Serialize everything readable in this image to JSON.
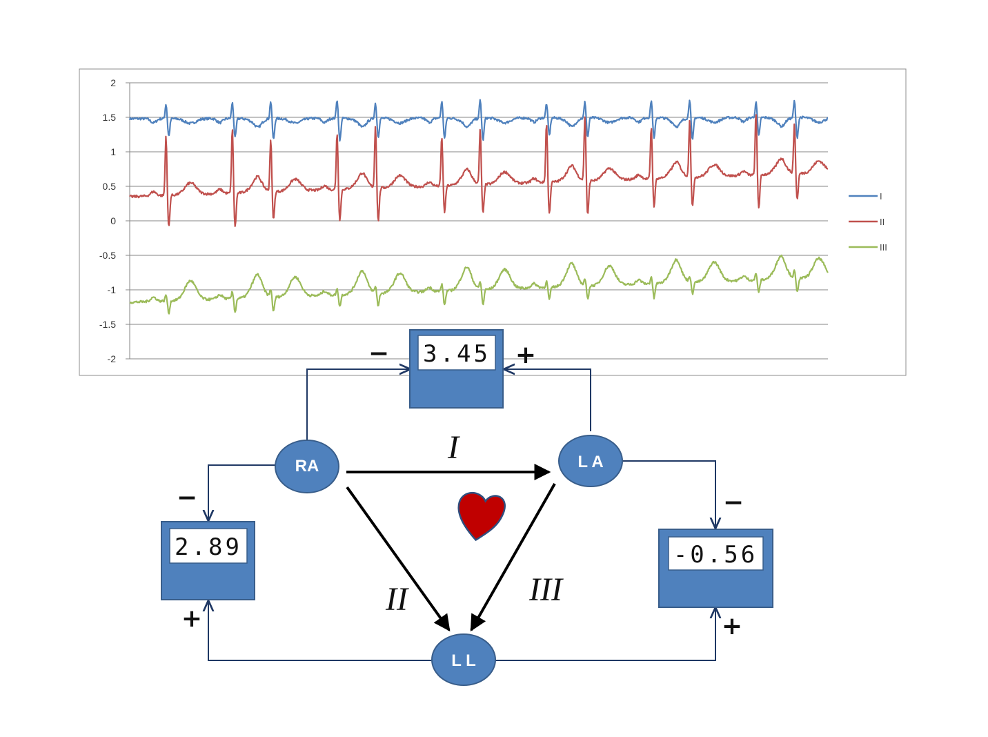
{
  "chart_data": {
    "type": "line",
    "ylim": [
      -2,
      2
    ],
    "y_ticks": [
      "2",
      "1.5",
      "1",
      "0.5",
      "0",
      "-0.5",
      "-1",
      "-1.5",
      "-2"
    ],
    "grid": true,
    "legend_position": "right",
    "series": [
      {
        "name": "I",
        "color": "#4F81BD",
        "baseline_start": 1.48,
        "baseline_end": 1.5,
        "r_peak": 0.25,
        "s_depth": 0.3,
        "t_wave": -0.07
      },
      {
        "name": "II",
        "color": "#C0504D",
        "baseline_start": 0.35,
        "baseline_end": 0.7,
        "r_peak": 0.85,
        "s_depth": 0.45,
        "t_wave": 0.17
      },
      {
        "name": "III",
        "color": "#9BBB59",
        "baseline_start": -1.18,
        "baseline_end": -0.82,
        "r_peak": 0.1,
        "s_depth": 0.2,
        "t_wave": 0.28
      }
    ],
    "beats": 13
  },
  "meters": {
    "lead_I": {
      "value": "3.45",
      "minus": "−",
      "plus": "+"
    },
    "lead_II": {
      "value": "2.89",
      "minus": "−",
      "plus": "+"
    },
    "lead_III": {
      "value": "-0.56",
      "minus": "−",
      "plus": "+"
    }
  },
  "electrodes": {
    "ra": "RA",
    "la": "L A",
    "ll": "L L"
  },
  "leads": {
    "i": "I",
    "ii": "II",
    "iii": "III"
  },
  "colors": {
    "box_fill": "#4F81BD",
    "box_stroke": "#385D8A",
    "wire": "#1F3864",
    "heart": "#C00000"
  }
}
